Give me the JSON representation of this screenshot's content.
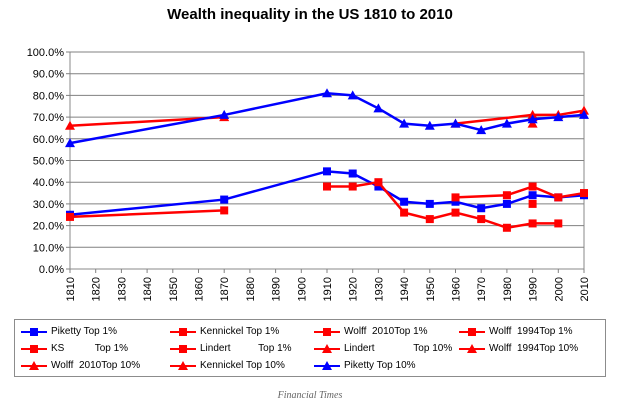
{
  "chart_data": {
    "type": "line",
    "title": "Wealth inequality  in the US 1810 to 2010",
    "xlabel": "",
    "ylabel": "",
    "ylim": [
      0,
      100
    ],
    "yticks": [
      "0.0%",
      "10.0%",
      "20.0%",
      "30.0%",
      "40.0%",
      "50.0%",
      "60.0%",
      "70.0%",
      "80.0%",
      "90.0%",
      "100.0%"
    ],
    "xlim": [
      1810,
      2010
    ],
    "xticks": [
      "1810",
      "1820",
      "1830",
      "1840",
      "1850",
      "1860",
      "1870",
      "1880",
      "1890",
      "1900",
      "1910",
      "1920",
      "1930",
      "1940",
      "1950",
      "1960",
      "1970",
      "1980",
      "1990",
      "2000",
      "2010"
    ],
    "grid": "horizontal",
    "legend_position": "bottom",
    "series": [
      {
        "name": "Piketty Top 1%",
        "color": "#0000ff",
        "marker": "square",
        "line": true,
        "points": [
          [
            1810,
            25
          ],
          [
            1870,
            32
          ],
          [
            1910,
            45
          ],
          [
            1920,
            44
          ],
          [
            1930,
            38
          ],
          [
            1940,
            31
          ],
          [
            1950,
            30
          ],
          [
            1960,
            31
          ],
          [
            1970,
            28
          ],
          [
            1980,
            30
          ],
          [
            1990,
            34
          ],
          [
            2000,
            33
          ],
          [
            2010,
            34
          ]
        ]
      },
      {
        "name": "Kennickel Top 1%",
        "color": "#ff0000",
        "marker": "square",
        "line": false,
        "points": [
          [
            1990,
            30
          ]
        ]
      },
      {
        "name": "Wolff  2010Top 1%",
        "color": "#ff0000",
        "marker": "square",
        "line": true,
        "points": [
          [
            1910,
            38
          ],
          [
            1920,
            38
          ],
          [
            1930,
            40
          ],
          [
            1940,
            26
          ],
          [
            1950,
            23
          ],
          [
            1960,
            26
          ],
          [
            1970,
            23
          ],
          [
            1980,
            19
          ],
          [
            1990,
            21
          ],
          [
            2000,
            21
          ]
        ]
      },
      {
        "name": "Wolff  1994Top 1%",
        "color": "#ff0000",
        "marker": "square",
        "line": true,
        "points": [
          [
            1960,
            33
          ],
          [
            1980,
            34
          ],
          [
            1990,
            38
          ],
          [
            2000,
            33
          ],
          [
            2010,
            35
          ]
        ]
      },
      {
        "name": "KS           Top 1%",
        "color": "#ff0000",
        "marker": "square",
        "line": false,
        "points": []
      },
      {
        "name": "Lindert          Top 1%",
        "color": "#ff0000",
        "marker": "square",
        "line": true,
        "points": [
          [
            1810,
            24
          ],
          [
            1870,
            27
          ]
        ]
      },
      {
        "name": "Lindert              Top 10%",
        "color": "#ff0000",
        "marker": "triangle",
        "line": true,
        "points": [
          [
            1810,
            66
          ],
          [
            1870,
            70
          ]
        ]
      },
      {
        "name": "Wolff  1994Top 10%",
        "color": "#ff0000",
        "marker": "triangle",
        "line": true,
        "points": [
          [
            1960,
            67
          ],
          [
            1990,
            71
          ],
          [
            2000,
            71
          ],
          [
            2010,
            73
          ]
        ]
      },
      {
        "name": "Wolff  2010Top 10%",
        "color": "#ff0000",
        "marker": "triangle",
        "line": false,
        "points": [
          [
            1990,
            70
          ]
        ]
      },
      {
        "name": "Kennickel Top 10%",
        "color": "#ff0000",
        "marker": "triangle",
        "line": false,
        "points": [
          [
            1990,
            67
          ]
        ]
      },
      {
        "name": "Piketty Top 10%",
        "color": "#0000ff",
        "marker": "triangle",
        "line": true,
        "points": [
          [
            1810,
            58
          ],
          [
            1870,
            71
          ],
          [
            1910,
            81
          ],
          [
            1920,
            80
          ],
          [
            1930,
            74
          ],
          [
            1940,
            67
          ],
          [
            1950,
            66
          ],
          [
            1960,
            67
          ],
          [
            1970,
            64
          ],
          [
            1980,
            67
          ],
          [
            1990,
            69
          ],
          [
            2000,
            70
          ],
          [
            2010,
            71
          ]
        ]
      }
    ]
  },
  "caption": "Financial Times"
}
